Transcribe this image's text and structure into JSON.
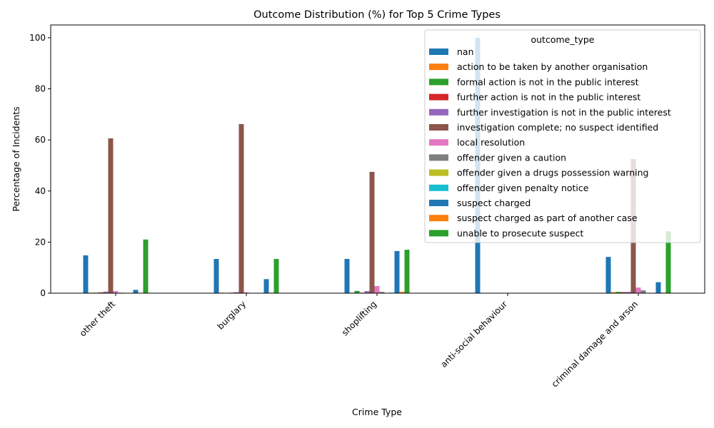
{
  "chart_data": {
    "type": "bar",
    "title": "Outcome Distribution (%) for Top 5 Crime Types",
    "xlabel": "Crime Type",
    "ylabel": "Percentage of Incidents",
    "ylim": [
      0,
      105
    ],
    "yticks": [
      0,
      20,
      40,
      60,
      80,
      100
    ],
    "legend_title": "outcome_type",
    "legend_position": "top-right",
    "categories": [
      "other theft",
      "burglary",
      "shoplifting",
      "anti-social behaviour",
      "criminal damage and arson"
    ],
    "series": [
      {
        "name": "nan",
        "color": "#1f77b4",
        "values": [
          14.8,
          13.4,
          13.4,
          100.0,
          14.2
        ]
      },
      {
        "name": "action to be taken by another organisation",
        "color": "#ff7f0e",
        "values": [
          0.2,
          0.2,
          0.2,
          0,
          0.4
        ]
      },
      {
        "name": "formal action is not in the public interest",
        "color": "#2ca02c",
        "values": [
          0.2,
          0.1,
          0.9,
          0,
          0.5
        ]
      },
      {
        "name": "further action is not in the public interest",
        "color": "#d62728",
        "values": [
          0.3,
          0.2,
          0.2,
          0,
          0.4
        ]
      },
      {
        "name": "further investigation is not in the public interest",
        "color": "#9467bd",
        "values": [
          0.6,
          0.4,
          0.8,
          0,
          0.5
        ]
      },
      {
        "name": "investigation complete; no suspect identified",
        "color": "#8c564b",
        "values": [
          60.6,
          66.2,
          47.5,
          0,
          52.5
        ]
      },
      {
        "name": "local resolution",
        "color": "#e377c2",
        "values": [
          0.8,
          0.3,
          2.8,
          0,
          2.2
        ]
      },
      {
        "name": "offender given a caution",
        "color": "#7f7f7f",
        "values": [
          0.2,
          0.1,
          0.5,
          0,
          1.1
        ]
      },
      {
        "name": "offender given a drugs possession warning",
        "color": "#bcbd22",
        "values": [
          0,
          0,
          0,
          0,
          0
        ]
      },
      {
        "name": "offender given penalty notice",
        "color": "#17becf",
        "values": [
          0.1,
          0,
          0.2,
          0,
          0.1
        ]
      },
      {
        "name": "suspect charged",
        "color": "#1f77b4",
        "values": [
          1.3,
          5.5,
          16.5,
          0,
          4.3
        ]
      },
      {
        "name": "suspect charged as part of another case",
        "color": "#ff7f0e",
        "values": [
          0.1,
          0.2,
          0.5,
          0,
          0.2
        ]
      },
      {
        "name": "unable to prosecute suspect",
        "color": "#2ca02c",
        "values": [
          21.0,
          13.4,
          17.0,
          0,
          24.2
        ]
      }
    ]
  }
}
